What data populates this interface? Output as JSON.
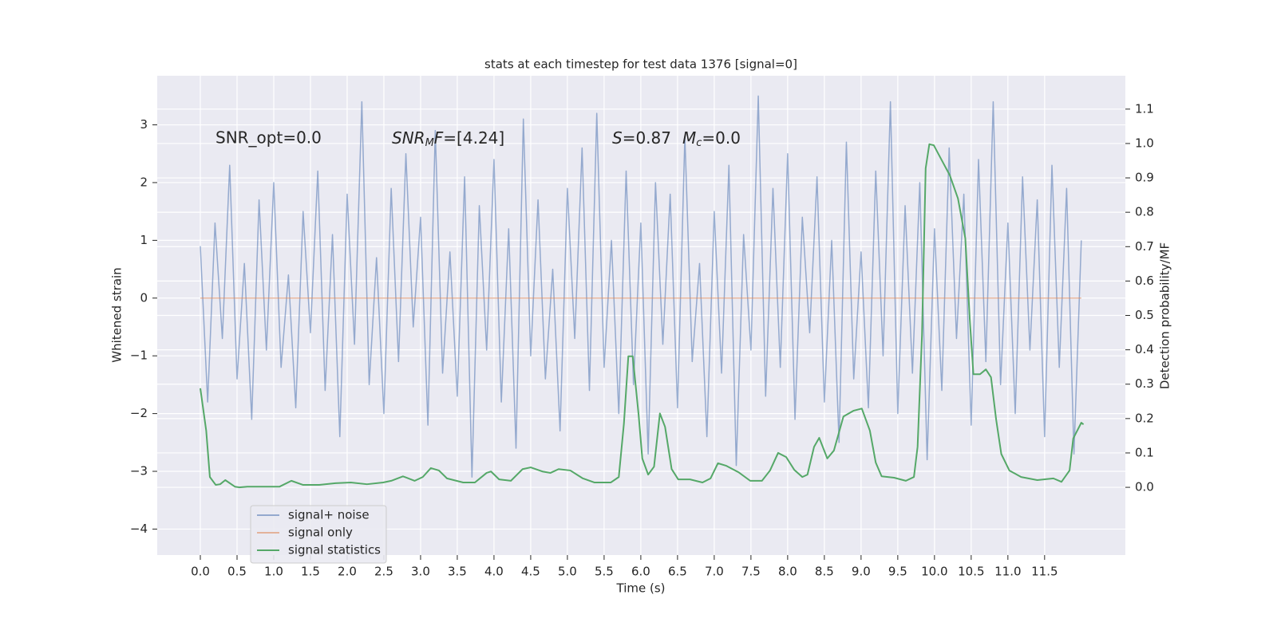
{
  "chart_data": {
    "type": "line",
    "title": "stats at each timestep for test data 1376 [signal=0]",
    "xlabel": "Time (s)",
    "ylabel": "Whitened strain",
    "y2label": "Detection probability/MF",
    "xlim": [
      -0.587,
      12.6
    ],
    "ylim": [
      -4.45,
      3.85
    ],
    "y2lim": [
      -0.197,
      1.197
    ],
    "xticks": [
      {
        "value": 0,
        "label": "0.0"
      },
      0.5,
      {
        "value": 1,
        "label": "1.0"
      },
      1.5,
      {
        "value": 2,
        "label": "2.0"
      },
      2.5,
      {
        "value": 3,
        "label": "3.0"
      },
      3.5,
      {
        "value": 4,
        "label": "4.0"
      },
      4.5,
      {
        "value": 5,
        "label": "5.0"
      },
      5.5,
      {
        "value": 6,
        "label": "6.0"
      },
      6.5,
      {
        "value": 7,
        "label": "7.0"
      },
      7.5,
      {
        "value": 8,
        "label": "8.0"
      },
      8.5,
      {
        "value": 9,
        "label": "9.0"
      },
      9.5,
      {
        "value": 10,
        "label": "10.0"
      },
      10.5,
      {
        "value": 11,
        "label": "11.0"
      },
      11.5
    ],
    "yticks": [
      {
        "value": -4,
        "label": "−4"
      },
      {
        "value": -3,
        "label": "−3"
      },
      {
        "value": -2,
        "label": "−2"
      },
      {
        "value": -1,
        "label": "−1"
      },
      0,
      1,
      2,
      3
    ],
    "y2ticks": [
      {
        "value": 0,
        "label": "0.0"
      },
      0.1,
      0.2,
      0.3,
      0.4,
      0.5,
      0.6,
      0.7,
      0.8,
      0.9,
      {
        "value": 1,
        "label": "1.0"
      },
      1.1
    ],
    "grid": true,
    "legend": "lower left",
    "annotations": [
      [
        "SNR_opt=0.0"
      ],
      [
        "SNR",
        "M",
        "F",
        "=[4.24]"
      ],
      [
        "S",
        "=0.87",
        "M",
        "c",
        "=0.0"
      ]
    ],
    "series": [
      {
        "name": "signal+ noise",
        "color": "#4c72b0",
        "x": [
          0,
          0.1,
          0.2,
          0.3,
          0.4,
          0.5,
          0.6,
          0.7,
          0.8,
          0.9,
          1,
          1.1,
          1.2,
          1.3,
          1.4,
          1.5,
          1.6,
          1.7,
          1.8,
          1.9,
          2,
          2.1,
          2.2,
          2.3,
          2.4,
          2.5,
          2.6,
          2.7,
          2.8,
          2.9,
          3,
          3.1,
          3.2,
          3.3,
          3.4,
          3.5,
          3.6,
          3.7,
          3.8,
          3.9,
          4,
          4.1,
          4.2,
          4.3,
          4.4,
          4.5,
          4.6,
          4.7,
          4.8,
          4.9,
          5,
          5.1,
          5.2,
          5.3,
          5.4,
          5.5,
          5.6,
          5.7,
          5.8,
          5.9,
          6,
          6.1,
          6.2,
          6.3,
          6.4,
          6.5,
          6.6,
          6.7,
          6.8,
          6.9,
          7,
          7.1,
          7.2,
          7.3,
          7.4,
          7.5,
          7.6,
          7.7,
          7.8,
          7.9,
          8,
          8.1,
          8.2,
          8.3,
          8.4,
          8.5,
          8.6,
          8.7,
          8.8,
          8.9,
          9,
          9.1,
          9.2,
          9.3,
          9.4,
          9.5,
          9.6,
          9.7,
          9.8,
          9.9,
          10,
          10.1,
          10.2,
          10.3,
          10.4,
          10.5,
          10.6,
          10.7,
          10.8,
          10.9,
          11,
          11.1,
          11.2,
          11.3,
          11.4,
          11.5,
          11.6,
          11.7,
          11.8,
          11.9,
          12
        ],
        "values": [
          0.9,
          -1.8,
          1.3,
          -0.7,
          2.3,
          -1.4,
          0.6,
          -2.1,
          1.7,
          -0.9,
          2.0,
          -1.2,
          0.4,
          -1.9,
          1.5,
          -0.6,
          2.2,
          -1.6,
          1.1,
          -2.4,
          1.8,
          -0.8,
          3.4,
          -1.5,
          0.7,
          -2.0,
          1.9,
          -1.1,
          2.5,
          -0.5,
          1.4,
          -2.2,
          2.9,
          -1.3,
          0.8,
          -1.7,
          2.1,
          -3.1,
          1.6,
          -0.9,
          2.4,
          -1.8,
          1.2,
          -2.6,
          3.1,
          -1.0,
          1.7,
          -1.4,
          0.5,
          -2.3,
          1.9,
          -0.7,
          2.6,
          -1.6,
          3.2,
          -1.2,
          1.0,
          -2.0,
          2.2,
          -1.5,
          1.3,
          -2.7,
          2.0,
          -0.8,
          1.8,
          -1.9,
          2.8,
          -1.1,
          0.6,
          -2.4,
          1.5,
          -1.3,
          2.3,
          -2.9,
          1.1,
          -0.9,
          3.5,
          -1.7,
          1.9,
          -1.2,
          2.5,
          -2.1,
          1.4,
          -0.6,
          2.1,
          -1.8,
          1.0,
          -2.5,
          2.7,
          -1.4,
          0.8,
          -1.9,
          2.2,
          -1.0,
          3.4,
          -2.0,
          1.6,
          -1.3,
          2.0,
          -2.8,
          1.2,
          -1.6,
          2.6,
          -0.7,
          1.8,
          -2.2,
          2.4,
          -1.1,
          3.4,
          -1.5,
          1.3,
          -2.0,
          2.1,
          -0.9,
          1.7,
          -2.4,
          2.3,
          -1.2,
          1.9,
          -2.7,
          1.0
        ]
      },
      {
        "name": "signal only",
        "color": "#dd8452",
        "x": [
          0,
          12
        ],
        "values": [
          0,
          0
        ]
      },
      {
        "name": "signal statistics",
        "color": "#55a868",
        "axis": "y2",
        "x": [
          0,
          0.08,
          0.13,
          0.21,
          0.27,
          0.34,
          0.47,
          0.53,
          0.64,
          0.86,
          1.08,
          1.24,
          1.4,
          1.62,
          1.84,
          2.05,
          2.27,
          2.49,
          2.6,
          2.76,
          2.92,
          3.03,
          3.14,
          3.25,
          3.36,
          3.58,
          3.74,
          3.9,
          3.96,
          4.07,
          4.23,
          4.39,
          4.5,
          4.66,
          4.77,
          4.88,
          5.04,
          5.21,
          5.37,
          5.59,
          5.7,
          5.77,
          5.83,
          5.89,
          5.97,
          6.02,
          6.1,
          6.18,
          6.26,
          6.33,
          6.42,
          6.51,
          6.67,
          6.84,
          6.95,
          7.05,
          7.16,
          7.33,
          7.49,
          7.65,
          7.76,
          7.87,
          7.98,
          8.09,
          8.2,
          8.27,
          8.36,
          8.43,
          8.54,
          8.63,
          8.76,
          8.9,
          9.01,
          9.12,
          9.2,
          9.28,
          9.45,
          9.61,
          9.72,
          9.77,
          9.83,
          9.88,
          9.93,
          9.99,
          10.1,
          10.21,
          10.32,
          10.42,
          10.48,
          10.53,
          10.62,
          10.7,
          10.77,
          10.84,
          10.91,
          11.02,
          11.18,
          11.4,
          11.62,
          11.73,
          11.84,
          11.89,
          12.0,
          12.03
        ],
        "values": [
          0.288,
          0.165,
          0.03,
          0.007,
          0.009,
          0.021,
          0.002,
          0,
          0.002,
          0.002,
          0.002,
          0.019,
          0.007,
          0.007,
          0.012,
          0.014,
          0.009,
          0.014,
          0.019,
          0.032,
          0.019,
          0.03,
          0.056,
          0.049,
          0.026,
          0.014,
          0.014,
          0.042,
          0.046,
          0.023,
          0.019,
          0.053,
          0.058,
          0.046,
          0.042,
          0.053,
          0.049,
          0.026,
          0.014,
          0.014,
          0.03,
          0.186,
          0.381,
          0.381,
          0.211,
          0.084,
          0.037,
          0.06,
          0.215,
          0.176,
          0.053,
          0.023,
          0.023,
          0.014,
          0.026,
          0.07,
          0.063,
          0.044,
          0.019,
          0.019,
          0.049,
          0.1,
          0.088,
          0.051,
          0.03,
          0.037,
          0.118,
          0.144,
          0.084,
          0.107,
          0.206,
          0.223,
          0.229,
          0.165,
          0.072,
          0.032,
          0.028,
          0.019,
          0.03,
          0.118,
          0.443,
          0.928,
          0.998,
          0.995,
          0.951,
          0.907,
          0.84,
          0.724,
          0.492,
          0.329,
          0.329,
          0.343,
          0.32,
          0.197,
          0.097,
          0.049,
          0.03,
          0.021,
          0.026,
          0.016,
          0.049,
          0.142,
          0.188,
          0.183
        ]
      }
    ]
  }
}
